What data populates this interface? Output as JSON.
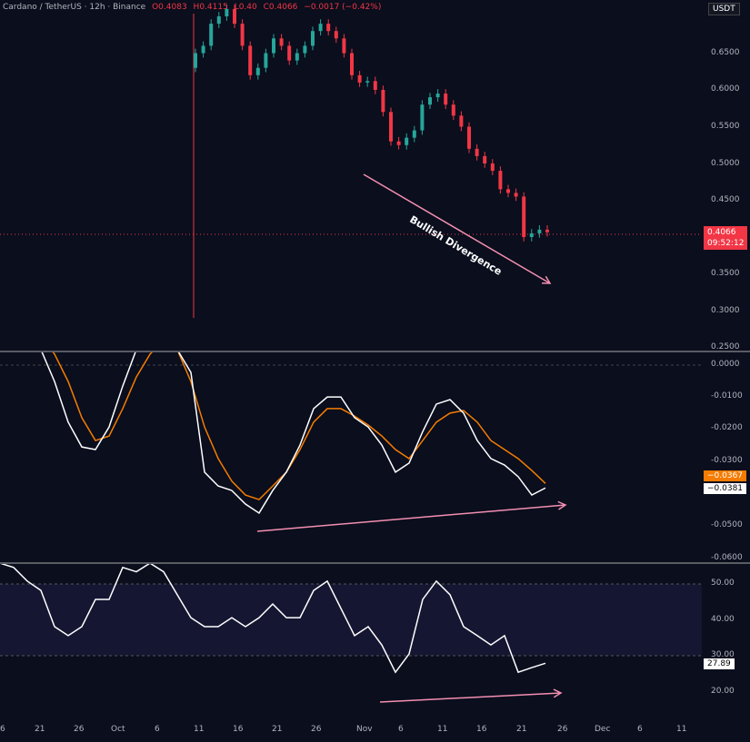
{
  "header": {
    "symbol": "Cardano / TetherUS · 12h · Binance",
    "open": "O0.4083",
    "high": "H0.4115",
    "low": "L0.40",
    "close": "C0.4066",
    "change": "−0.0017 (−0.42%)"
  },
  "currency": "USDT",
  "price_axis": [
    "0.6500",
    "0.6000",
    "0.5500",
    "0.5000",
    "0.4500",
    "0.3500",
    "0.3000",
    "0.2500"
  ],
  "price_tag": {
    "value": "0.4066",
    "countdown": "09:52:12",
    "color": "#f23645"
  },
  "osc_axis": [
    "0.0000",
    "-0.0100",
    "-0.0200",
    "-0.0300",
    "-0.0500",
    "-0.0600"
  ],
  "osc_tags": {
    "orange": "−0.0367",
    "white": "−0.0381"
  },
  "rsi_axis": [
    "50.00",
    "40.00",
    "30.00",
    "20.00"
  ],
  "rsi_tag": "27.89",
  "x_axis": [
    "6",
    "21",
    "26",
    "Oct",
    "6",
    "11",
    "16",
    "21",
    "26",
    "Nov",
    "6",
    "11",
    "16",
    "21",
    "26",
    "Dec",
    "6",
    "11"
  ],
  "annotation": "Bullish Divergence",
  "colors": {
    "up": "#26a69a",
    "down": "#f23645",
    "orange": "#f57c00",
    "line": "#ffffff",
    "arrow": "#f48fb1"
  },
  "price_closes": [
    0.65,
    0.66,
    0.69,
    0.7,
    0.71,
    0.69,
    0.66,
    0.62,
    0.63,
    0.65,
    0.67,
    0.66,
    0.64,
    0.65,
    0.66,
    0.68,
    0.69,
    0.68,
    0.67,
    0.65,
    0.62,
    0.61,
    0.612,
    0.6,
    0.57,
    0.53,
    0.525,
    0.535,
    0.545,
    0.58,
    0.59,
    0.595,
    0.58,
    0.565,
    0.55,
    0.52,
    0.51,
    0.5,
    0.49,
    0.465,
    0.46,
    0.455,
    0.4,
    0.405,
    0.41,
    0.4066
  ],
  "osc_white": [
    0.0048,
    -0.0051,
    -0.0177,
    -0.0254,
    -0.0262,
    -0.0192,
    -0.0065,
    0.0048,
    0.009,
    0.009,
    0.0048,
    -0.0023,
    -0.0332,
    -0.0375,
    -0.0389,
    -0.0431,
    -0.0459,
    -0.0389,
    -0.0332,
    -0.0248,
    -0.0135,
    -0.0099,
    -0.0099,
    -0.0163,
    -0.0192,
    -0.0248,
    -0.0332,
    -0.0304,
    -0.0206,
    -0.0121,
    -0.0107,
    -0.0149,
    -0.0234,
    -0.029,
    -0.031,
    -0.0346,
    -0.0403,
    -0.0381
  ],
  "osc_orange": [
    0.009,
    0.0034,
    -0.0051,
    -0.0163,
    -0.0234,
    -0.022,
    -0.0135,
    -0.0037,
    0.0034,
    0.0076,
    0.0048,
    -0.0051,
    -0.0192,
    -0.029,
    -0.036,
    -0.0403,
    -0.0417,
    -0.0375,
    -0.0332,
    -0.0262,
    -0.0177,
    -0.0135,
    -0.0135,
    -0.0158,
    -0.0186,
    -0.022,
    -0.0262,
    -0.029,
    -0.0234,
    -0.0177,
    -0.0149,
    -0.0141,
    -0.0177,
    -0.0234,
    -0.0262,
    -0.029,
    -0.0327,
    -0.0367
  ],
  "rsi": [
    55.8,
    54.6,
    50.8,
    48.2,
    38.1,
    35.6,
    38.1,
    45.7,
    45.7,
    54.6,
    53.4,
    55.8,
    53.4,
    47.0,
    40.6,
    38.1,
    38.1,
    40.6,
    38.1,
    40.6,
    44.4,
    40.6,
    40.6,
    48.2,
    50.8,
    43.2,
    35.6,
    38.1,
    33.0,
    25.4,
    30.5,
    45.7,
    50.8,
    47.0,
    38.1,
    35.6,
    33.0,
    35.6,
    25.4,
    26.7,
    27.89
  ]
}
